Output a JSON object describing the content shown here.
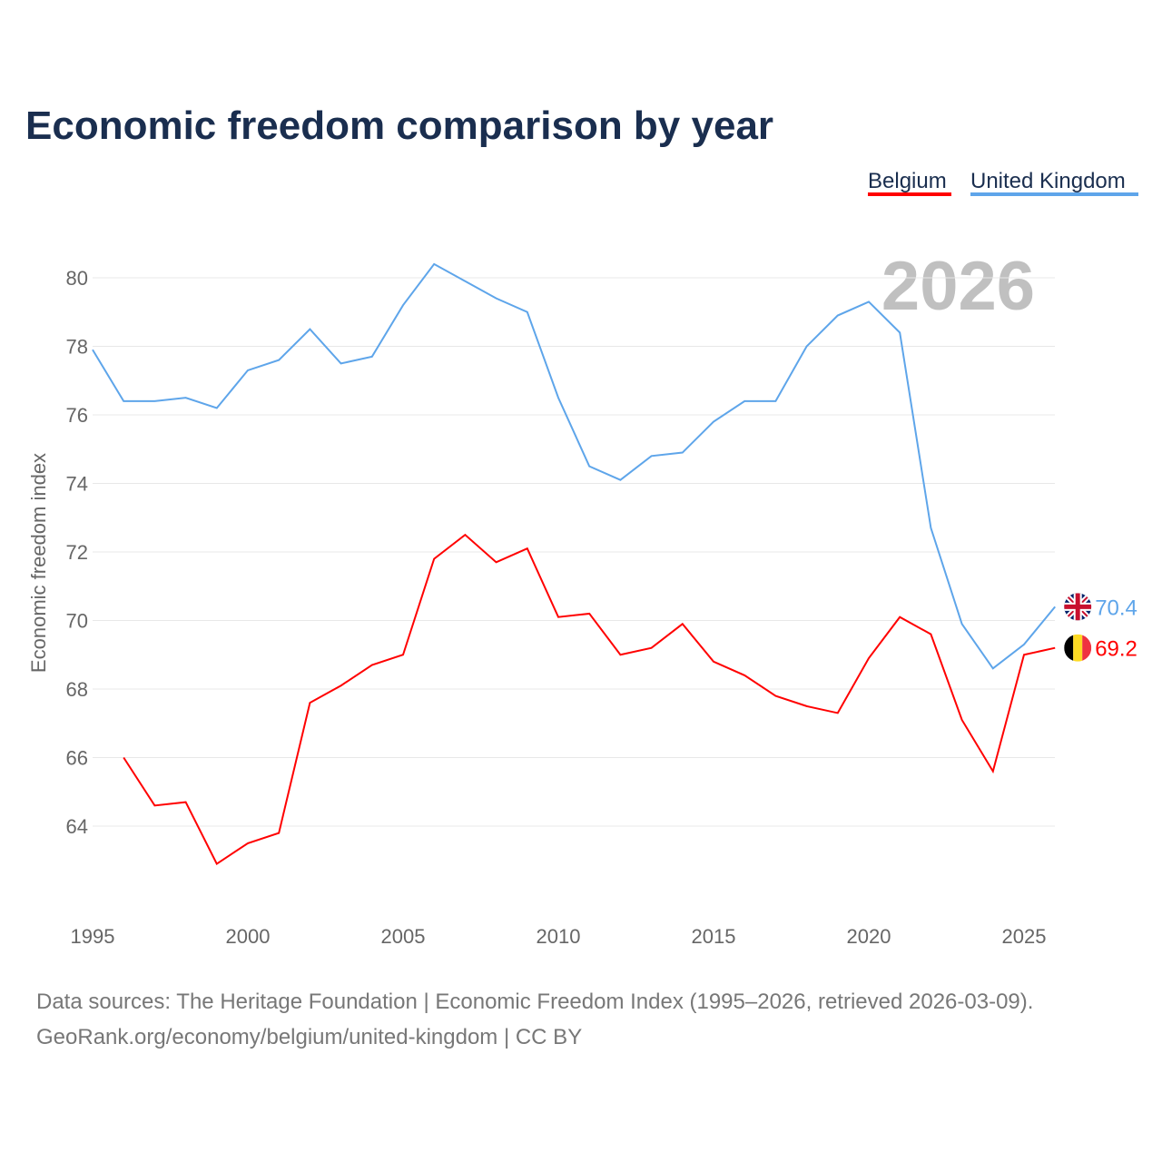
{
  "chart_data": {
    "type": "line",
    "title": "Economic freedom comparison by year",
    "ylabel": "Economic freedom index",
    "xlabel": "",
    "xlim": [
      1995,
      2026
    ],
    "ylim": [
      62,
      81.5
    ],
    "yticks": [
      64,
      66,
      68,
      70,
      72,
      74,
      76,
      78,
      80
    ],
    "xticks": [
      1995,
      2000,
      2005,
      2010,
      2015,
      2020,
      2025
    ],
    "grid": true,
    "legend_position": "top-right",
    "year_watermark": "2026",
    "series": [
      {
        "name": "Belgium",
        "color": "#ff0000",
        "end_label": "69.2",
        "flag": "belgium-flag",
        "x": [
          1996,
          1997,
          1998,
          1999,
          2000,
          2001,
          2002,
          2003,
          2004,
          2005,
          2006,
          2007,
          2008,
          2009,
          2010,
          2011,
          2012,
          2013,
          2014,
          2015,
          2016,
          2017,
          2018,
          2019,
          2020,
          2021,
          2022,
          2023,
          2024,
          2025,
          2026
        ],
        "values": [
          66.0,
          64.6,
          64.7,
          62.9,
          63.5,
          63.8,
          67.6,
          68.1,
          68.7,
          69.0,
          71.8,
          72.5,
          71.7,
          72.1,
          70.1,
          70.2,
          69.0,
          69.2,
          69.9,
          68.8,
          68.4,
          67.8,
          67.5,
          67.3,
          68.9,
          70.1,
          69.6,
          67.1,
          65.6,
          69.0,
          69.2
        ]
      },
      {
        "name": "United Kingdom",
        "color": "#5ea5ea",
        "end_label": "70.4",
        "flag": "uk-flag",
        "x": [
          1995,
          1996,
          1997,
          1998,
          1999,
          2000,
          2001,
          2002,
          2003,
          2004,
          2005,
          2006,
          2007,
          2008,
          2009,
          2010,
          2011,
          2012,
          2013,
          2014,
          2015,
          2016,
          2017,
          2018,
          2019,
          2020,
          2021,
          2022,
          2023,
          2024,
          2025,
          2026
        ],
        "values": [
          77.9,
          76.4,
          76.4,
          76.5,
          76.2,
          77.3,
          77.6,
          78.5,
          77.5,
          77.7,
          79.2,
          80.4,
          79.9,
          79.4,
          79.0,
          76.5,
          74.5,
          74.1,
          74.8,
          74.9,
          75.8,
          76.4,
          76.4,
          78.0,
          78.9,
          79.3,
          78.4,
          72.7,
          69.9,
          68.6,
          69.3,
          70.4
        ]
      }
    ]
  },
  "footer": {
    "line1": "Data sources: The Heritage Foundation | Economic Freedom Index (1995–2026, retrieved 2026-03-09).",
    "line2": "GeoRank.org/economy/belgium/united-kingdom | CC BY"
  }
}
